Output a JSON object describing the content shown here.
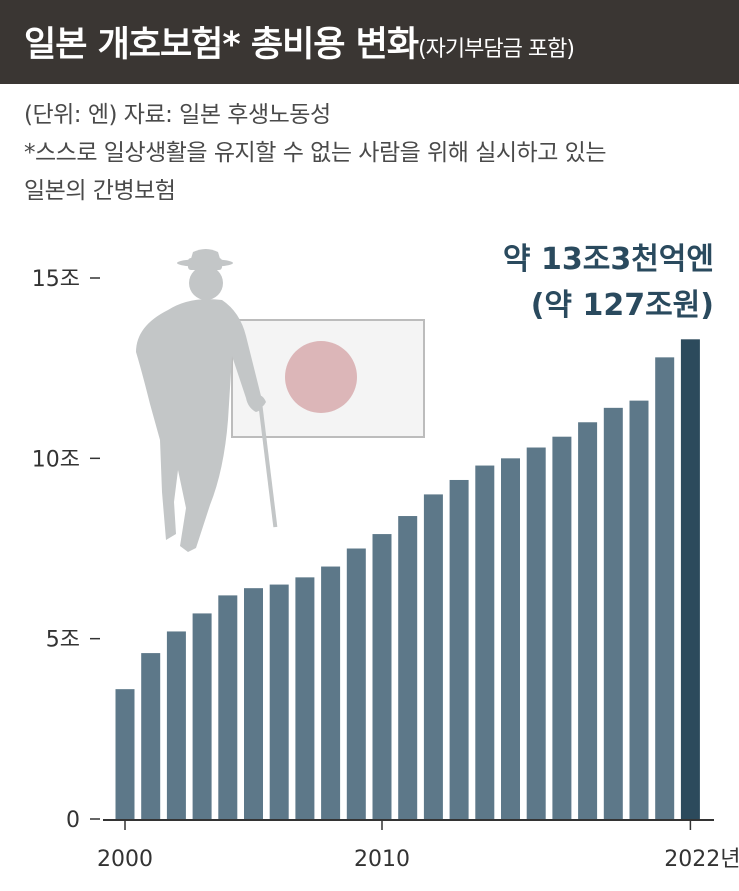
{
  "header": {
    "title": "일본 개호보험* 총비용 변화",
    "title_sub": "(자기부담금 포함)"
  },
  "notes": {
    "unit_source": "(단위: 엔) 자료: 일본 후생노동성",
    "footnote_1": "*스스로 일상생활을 유지할 수 없는 사람을 위해 실시하고 있는",
    "footnote_2": "일본의 간병보험"
  },
  "chart_data": {
    "type": "bar",
    "title": "일본 개호보험* 총비용 변화",
    "x": [
      2000,
      2001,
      2002,
      2003,
      2004,
      2005,
      2006,
      2007,
      2008,
      2009,
      2010,
      2011,
      2012,
      2013,
      2014,
      2015,
      2016,
      2017,
      2018,
      2019,
      2020,
      2021,
      2022
    ],
    "values": [
      3.6,
      4.6,
      5.2,
      5.7,
      6.2,
      6.4,
      6.5,
      6.7,
      7.0,
      7.5,
      7.9,
      8.4,
      9.0,
      9.4,
      9.8,
      10.0,
      10.3,
      10.6,
      11.0,
      11.4,
      11.6,
      12.8,
      13.3
    ],
    "ylim": [
      0,
      15
    ],
    "y_ticks": [
      0,
      5,
      10,
      15
    ],
    "y_tick_labels": [
      "0",
      "5조",
      "10조",
      "15조"
    ],
    "x_ticks": [
      2000,
      2010,
      2022
    ],
    "x_tick_labels": [
      "2000",
      "2010",
      "2022년"
    ],
    "bar_color": "#5d7889",
    "highlight_color": "#2c4a5c",
    "highlight_index": 22,
    "annotation": {
      "line1": "약 13조3천억엔",
      "line2": "(약 127조원)"
    }
  }
}
